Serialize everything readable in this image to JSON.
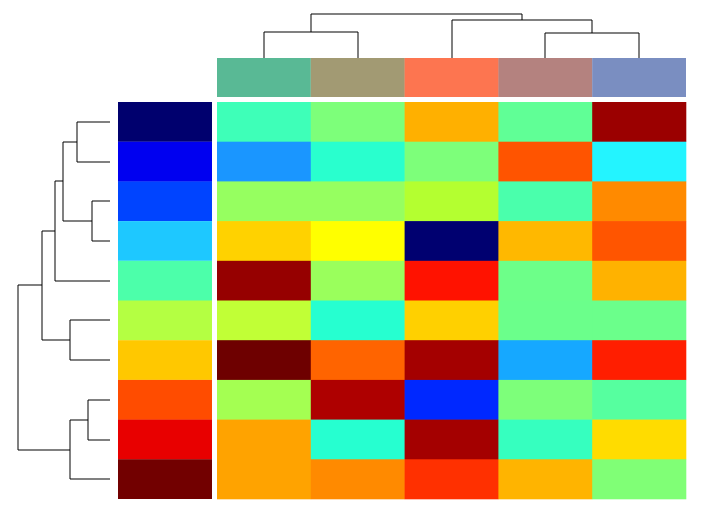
{
  "chart_data": {
    "type": "clustermap",
    "col_colors": [
      "#59b995",
      "#a29a73",
      "#fd7550",
      "#b4827f",
      "#7a8ec1"
    ],
    "row_colors": [
      "#00006e",
      "#0000f0",
      "#0044ff",
      "#1ec8ff",
      "#4cffaa",
      "#b4ff42",
      "#ffc800",
      "#ff4c00",
      "#e80000",
      "#720000"
    ],
    "cells": [
      [
        "#3effb8",
        "#7dff7a",
        "#ffb000",
        "#60ff96",
        "#9b0000"
      ],
      [
        "#1a96ff",
        "#29ffce",
        "#7dff7a",
        "#ff5400",
        "#23f4ff"
      ],
      [
        "#96ff60",
        "#96ff60",
        "#b4ff30",
        "#4affac",
        "#ff8a00"
      ],
      [
        "#ffd200",
        "#ffff00",
        "#000070",
        "#ffb800",
        "#ff5500"
      ],
      [
        "#960000",
        "#9aff5c",
        "#ff1200",
        "#6dff89",
        "#ffb200"
      ],
      [
        "#c1ff36",
        "#26ffd0",
        "#ffd000",
        "#6bff8b",
        "#6bff8b"
      ],
      [
        "#6e0000",
        "#ff6400",
        "#a40000",
        "#16a8ff",
        "#ff1e00"
      ],
      [
        "#a4ff52",
        "#ae0000",
        "#0028ff",
        "#7dff7a",
        "#56ff9f"
      ],
      [
        "#ffa300",
        "#26ffd0",
        "#a40000",
        "#36ffbf",
        "#ffdc00"
      ],
      [
        "#ffa300",
        "#ff8a00",
        "#ff3000",
        "#ffb400",
        "#80ff76"
      ]
    ]
  }
}
